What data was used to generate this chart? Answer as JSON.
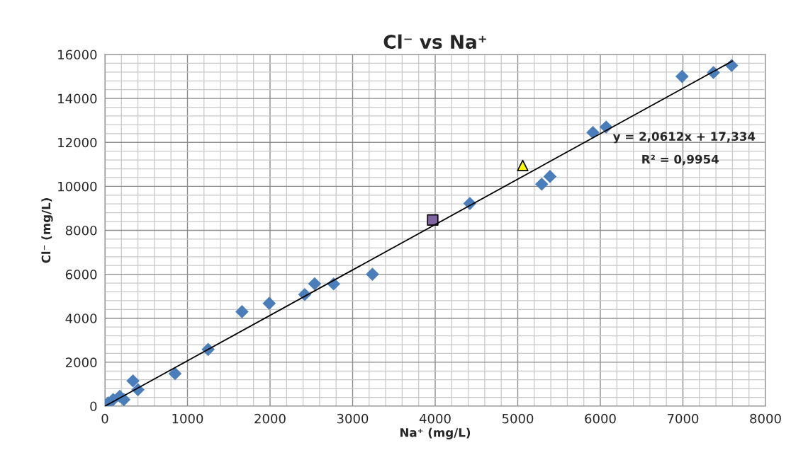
{
  "chart_data": {
    "type": "scatter",
    "title": "Cl⁻ vs Na⁺",
    "xlabel": "Na⁺ (mg/L)",
    "ylabel": "Cl⁻ (mg/L)",
    "xlim": [
      0,
      8000
    ],
    "xticks": [
      0,
      1000,
      2000,
      3000,
      4000,
      5000,
      6000,
      7000,
      8000
    ],
    "ylim": [
      0,
      16000
    ],
    "yticks": [
      0,
      2000,
      4000,
      6000,
      8000,
      10000,
      12000,
      14000,
      16000
    ],
    "grid": true,
    "legend": false,
    "series": [
      {
        "marker": "diamond",
        "color": "#4a7ebb",
        "x": [
          40,
          100,
          180,
          230,
          340,
          400,
          850,
          1250,
          1660,
          1990,
          2420,
          2540,
          2770,
          3240,
          4420,
          5290,
          5390,
          5910,
          6070,
          6990,
          7370,
          7590
        ],
        "values": [
          150,
          300,
          450,
          300,
          1150,
          750,
          1480,
          2580,
          4300,
          4680,
          5080,
          5570,
          5560,
          6000,
          9220,
          10100,
          10450,
          12450,
          12700,
          15000,
          15180,
          15500
        ]
      },
      {
        "marker": "square",
        "color": "#8064a2",
        "x": [
          3970
        ],
        "values": [
          8470
        ]
      },
      {
        "marker": "triangle",
        "color": "#ffff00",
        "x": [
          5060
        ],
        "values": [
          10950
        ]
      },
      {
        "type": "line",
        "marker": "none",
        "color": "#000000",
        "x": [
          0,
          7600
        ],
        "values": [
          0,
          15700
        ]
      }
    ],
    "annotations": [
      "y = 2,0612x + 17,334",
      "R² = 0,9954"
    ]
  }
}
